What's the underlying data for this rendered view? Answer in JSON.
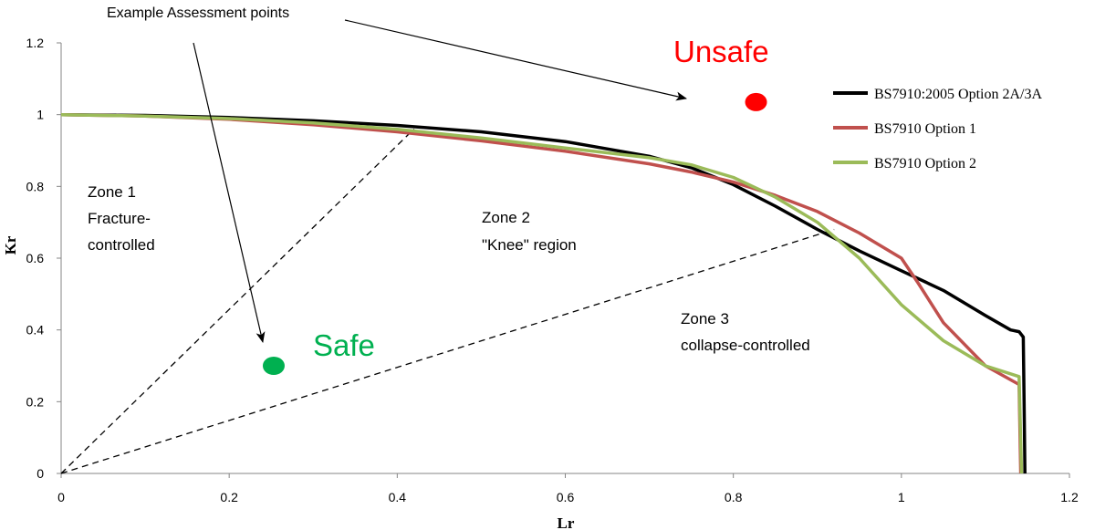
{
  "chart_data": {
    "type": "line",
    "xlabel": "Lr",
    "ylabel": "Kr",
    "xlim": [
      0,
      1.2
    ],
    "ylim": [
      0,
      1.2
    ],
    "x_ticks": [
      0,
      0.2,
      0.4,
      0.6,
      0.8,
      1,
      1.2
    ],
    "y_ticks": [
      0,
      0.2,
      0.4,
      0.6,
      0.8,
      1,
      1.2
    ],
    "x_tick_labels": [
      "0",
      "0.2",
      "0.4",
      "0.6",
      "0.8",
      "1",
      "1.2"
    ],
    "y_tick_labels": [
      "0",
      "0.2",
      "0.4",
      "0.6",
      "0.8",
      "1",
      "1.2"
    ],
    "grid": false,
    "legend_position": "top-right",
    "series": [
      {
        "name": "BS7910:2005 Option 2A/3A",
        "color": "#000000",
        "points": [
          [
            0,
            1.0
          ],
          [
            0.1,
            0.998
          ],
          [
            0.2,
            0.992
          ],
          [
            0.3,
            0.983
          ],
          [
            0.4,
            0.97
          ],
          [
            0.5,
            0.952
          ],
          [
            0.6,
            0.925
          ],
          [
            0.7,
            0.884
          ],
          [
            0.75,
            0.852
          ],
          [
            0.8,
            0.805
          ],
          [
            0.85,
            0.745
          ],
          [
            0.9,
            0.68
          ],
          [
            0.95,
            0.62
          ],
          [
            1.0,
            0.565
          ],
          [
            1.05,
            0.51
          ],
          [
            1.1,
            0.44
          ],
          [
            1.13,
            0.4
          ],
          [
            1.14,
            0.395
          ],
          [
            1.145,
            0.38
          ],
          [
            1.146,
            0.2
          ],
          [
            1.147,
            0
          ]
        ]
      },
      {
        "name": "BS7910 Option 1",
        "color": "#C0504D",
        "points": [
          [
            0,
            1.0
          ],
          [
            0.1,
            0.996
          ],
          [
            0.2,
            0.987
          ],
          [
            0.3,
            0.972
          ],
          [
            0.4,
            0.952
          ],
          [
            0.5,
            0.927
          ],
          [
            0.6,
            0.898
          ],
          [
            0.7,
            0.863
          ],
          [
            0.75,
            0.84
          ],
          [
            0.8,
            0.812
          ],
          [
            0.85,
            0.775
          ],
          [
            0.9,
            0.73
          ],
          [
            0.95,
            0.67
          ],
          [
            1.0,
            0.6
          ],
          [
            1.02,
            0.53
          ],
          [
            1.05,
            0.42
          ],
          [
            1.1,
            0.3
          ],
          [
            1.14,
            0.248
          ],
          [
            1.142,
            0
          ]
        ]
      },
      {
        "name": "BS7910 Option 2",
        "color": "#9BBB59",
        "points": [
          [
            0,
            1.0
          ],
          [
            0.1,
            0.996
          ],
          [
            0.2,
            0.989
          ],
          [
            0.3,
            0.977
          ],
          [
            0.4,
            0.959
          ],
          [
            0.5,
            0.935
          ],
          [
            0.6,
            0.907
          ],
          [
            0.7,
            0.88
          ],
          [
            0.75,
            0.86
          ],
          [
            0.8,
            0.825
          ],
          [
            0.85,
            0.77
          ],
          [
            0.9,
            0.7
          ],
          [
            0.95,
            0.6
          ],
          [
            1.0,
            0.47
          ],
          [
            1.05,
            0.37
          ],
          [
            1.1,
            0.3
          ],
          [
            1.14,
            0.27
          ],
          [
            1.143,
            0
          ]
        ]
      }
    ],
    "assessment_points": [
      {
        "label": "Safe",
        "x": 0.253,
        "y": 0.3,
        "color": "#00B050"
      },
      {
        "label": "Unsafe",
        "x": 0.827,
        "y": 1.035,
        "color": "#FF0000"
      }
    ],
    "dashed_lines": [
      {
        "from": [
          0,
          0
        ],
        "to": [
          0.42,
          0.96
        ]
      },
      {
        "from": [
          0,
          0
        ],
        "to": [
          0.92,
          0.68
        ]
      }
    ],
    "zone_annotations": [
      {
        "lines": [
          "Zone 1",
          "Fracture-",
          "controlled"
        ]
      },
      {
        "lines": [
          "Zone 2",
          "\"Knee\" region"
        ]
      },
      {
        "lines": [
          "Zone 3",
          "collapse-controlled"
        ]
      }
    ],
    "callout": {
      "text": "Example Assessment points"
    }
  }
}
